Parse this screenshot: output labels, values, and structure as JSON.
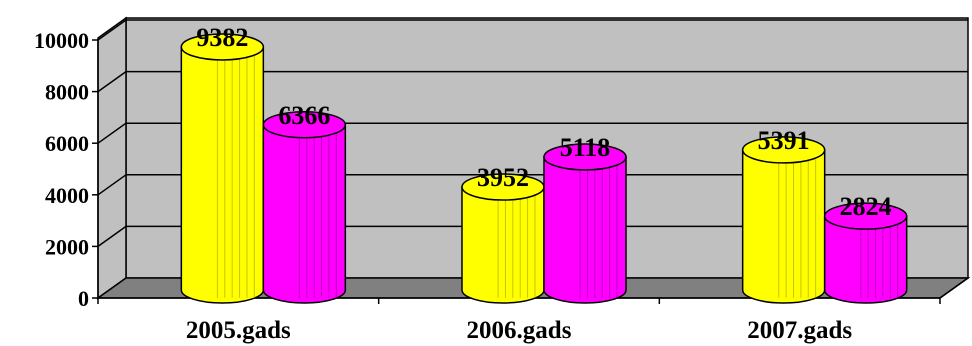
{
  "chart_data": {
    "type": "bar",
    "style": "3d-cylinder",
    "categories": [
      "2005.gads",
      "2006.gads",
      "2007.gads"
    ],
    "series": [
      {
        "values": [
          9382,
          3952,
          5391
        ],
        "color": "#ffff00"
      },
      {
        "values": [
          6366,
          5118,
          2824
        ],
        "color": "#ff00ff"
      }
    ],
    "ylim": [
      0,
      10000
    ],
    "yticks": [
      0,
      2000,
      4000,
      6000,
      8000,
      10000
    ],
    "tick_labels": [
      "0",
      "2000",
      "4000",
      "6000",
      "8000",
      "10000"
    ],
    "data_labels": [
      [
        "9382",
        "3952",
        "5391"
      ],
      [
        "6366",
        "5118",
        "2824"
      ]
    ],
    "grid": true,
    "legend": "none",
    "wall_color": "#c0c0c0",
    "floor_color": "#808080"
  }
}
